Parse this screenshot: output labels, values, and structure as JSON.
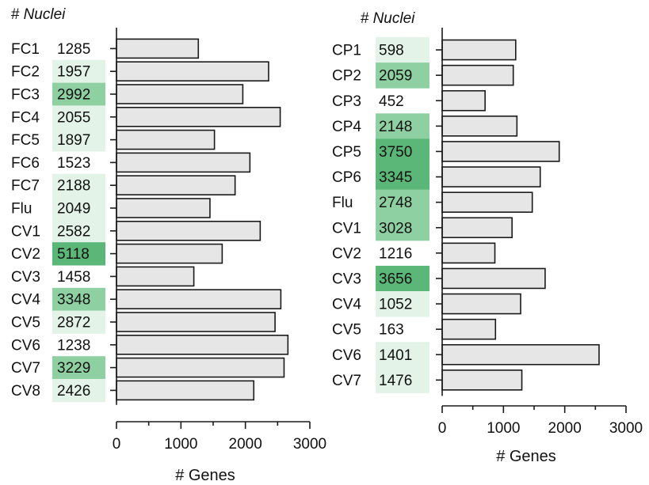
{
  "colors": {
    "bar_fill": "#e6e6e6",
    "bar_stroke": "#1a1a1a",
    "highlight_light": "#e3f3e8",
    "highlight_mid": "#c3e6cd",
    "highlight_strong": "#8fd0a3",
    "highlight_dark": "#5ab777"
  },
  "chart_data": [
    {
      "type": "bar",
      "orientation": "horizontal",
      "nuclei_title": "# Nuclei",
      "xlabel": "# Genes",
      "xlim": [
        0,
        3000
      ],
      "xticks": [
        "0",
        "1000",
        "2000",
        "3000"
      ],
      "categories": [
        "FC1",
        "FC2",
        "FC3",
        "FC4",
        "FC5",
        "FC6",
        "FC7",
        "Flu",
        "CV1",
        "CV2",
        "CV3",
        "CV4",
        "CV5",
        "CV6",
        "CV7",
        "CV8"
      ],
      "nuclei": [
        "1285",
        "1957",
        "2992",
        "2055",
        "1897",
        "1523",
        "2188",
        "2049",
        "2582",
        "5118",
        "1458",
        "3348",
        "2872",
        "1238",
        "3229",
        "2426"
      ],
      "nuclei_highlight": [
        0,
        1,
        2,
        1,
        1,
        0,
        1,
        1,
        1,
        3,
        0,
        2,
        1,
        0,
        2,
        1
      ],
      "values": [
        1270,
        2360,
        1960,
        2540,
        1520,
        2070,
        1840,
        1450,
        2230,
        1640,
        1200,
        2550,
        2460,
        2660,
        2600,
        2130
      ]
    },
    {
      "type": "bar",
      "orientation": "horizontal",
      "nuclei_title": "# Nuclei",
      "xlabel": "# Genes",
      "xlim": [
        0,
        3000
      ],
      "xticks": [
        "0",
        "1000",
        "2000",
        "3000"
      ],
      "categories": [
        "CP1",
        "CP2",
        "CP3",
        "CP4",
        "CP5",
        "CP6",
        "Flu",
        "CV1",
        "CV2",
        "CV3",
        "CV4",
        "CV5",
        "CV6",
        "CV7"
      ],
      "nuclei": [
        "598",
        "2059",
        "452",
        "2148",
        "3750",
        "3345",
        "2748",
        "3028",
        "1216",
        "3656",
        "1052",
        "163",
        "1401",
        "1476"
      ],
      "nuclei_highlight": [
        1,
        2,
        0,
        2,
        3,
        3,
        2,
        2,
        0,
        3,
        1,
        0,
        1,
        1
      ],
      "values": [
        1200,
        1160,
        700,
        1220,
        1910,
        1600,
        1470,
        1140,
        860,
        1680,
        1280,
        870,
        2560,
        1300
      ]
    }
  ]
}
